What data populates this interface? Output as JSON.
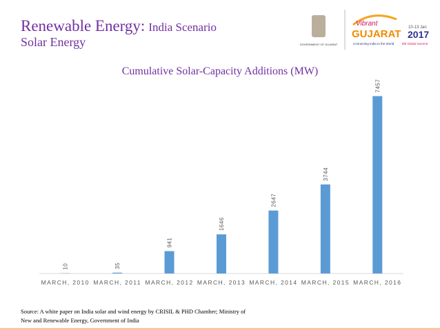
{
  "slide": {
    "title": "Renewable Energy:",
    "title_suffix": "India Scenario",
    "subtitle": "Solar Energy",
    "source_lines": [
      "Source: A white paper on India solar and wind energy by CRISIL & PHD Chamber; Ministry of",
      "New and Renewable Energy, Government of India"
    ],
    "logo": {
      "government": "GOVERNMENT OF GUJARAT",
      "vibrant": "Vibrant",
      "gujarat": "GUJARAT",
      "dates": "10-13 Jan",
      "year": "2017",
      "tagline": "Connecting India to the World",
      "summit": "8th Global Summit"
    }
  },
  "chart_data": {
    "type": "bar",
    "title": "Cumulative Solar-Capacity Additions (MW)",
    "categories": [
      "MARCH, 2010",
      "MARCH, 2011",
      "MARCH, 2012",
      "MARCH, 2013",
      "MARCH, 2014",
      "MARCH, 2015",
      "MARCH, 2016"
    ],
    "values": [
      10,
      35,
      941,
      1646,
      2647,
      3744,
      7457
    ],
    "color": "#5b9bd5",
    "ylim": [
      0,
      7500
    ]
  }
}
